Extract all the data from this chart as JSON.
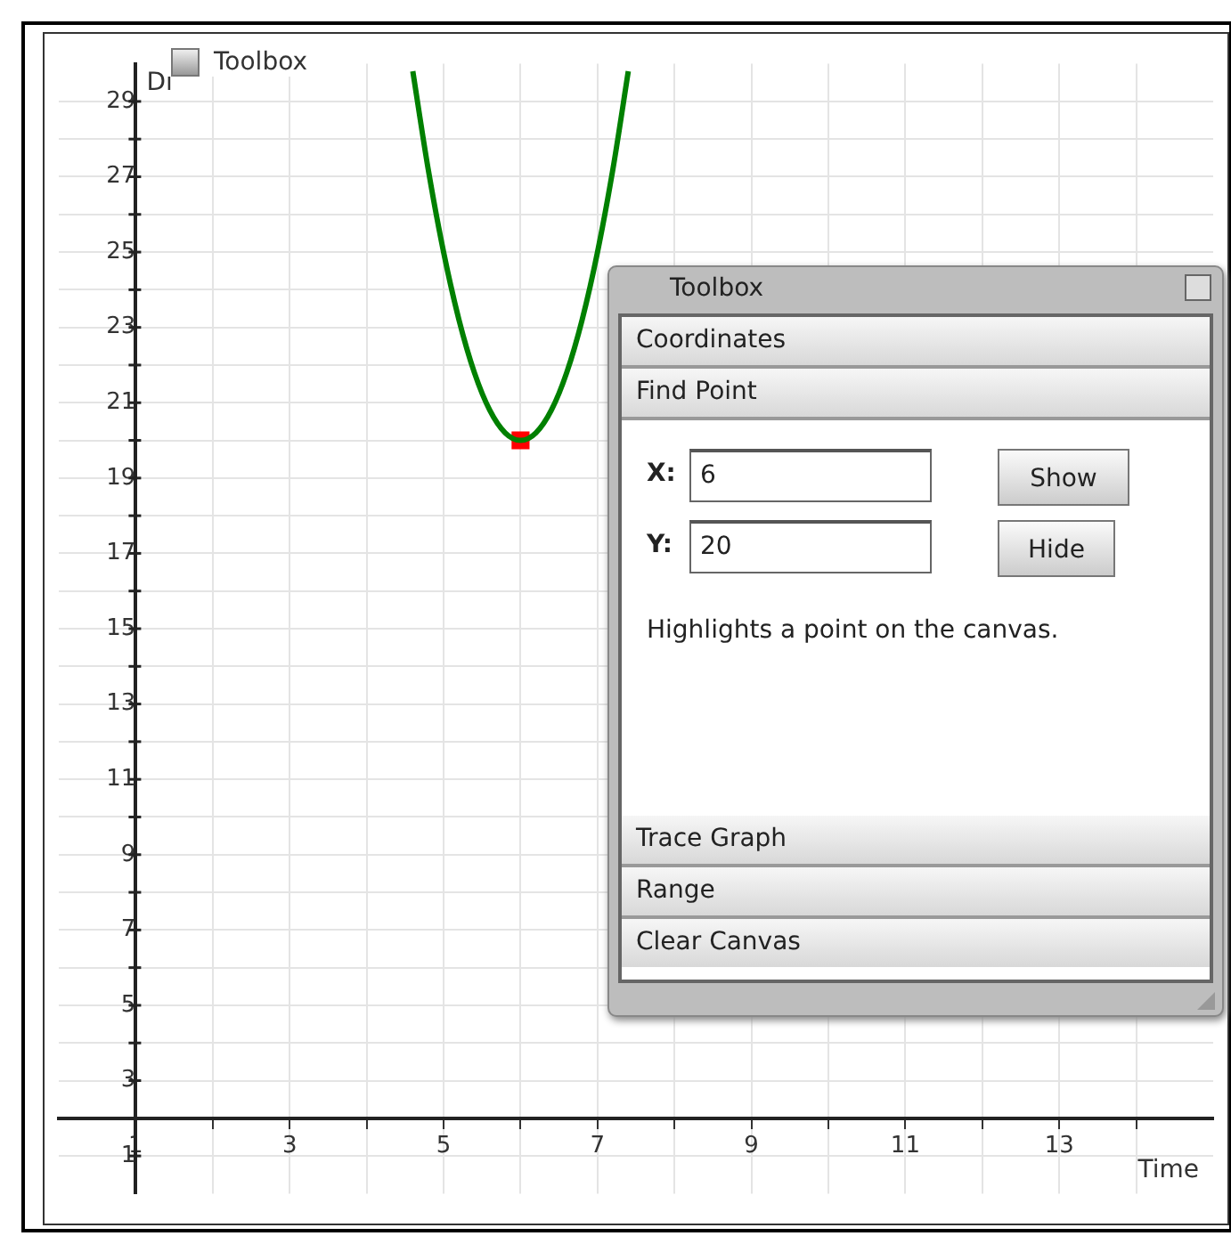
{
  "chart_data": {
    "type": "line",
    "xlabel": "Time",
    "ylabel": "Di",
    "x": [
      4.6,
      4.8,
      5.0,
      5.2,
      5.4,
      5.6,
      5.8,
      6.0,
      6.2,
      6.4,
      6.6,
      6.8,
      7.0,
      7.2,
      7.4
    ],
    "series": [
      {
        "type": "line",
        "color": "#008000",
        "marker": "none",
        "values": [
          29.8,
          27.2,
          25,
          23.2,
          21.8,
          20.8,
          20.2,
          20,
          20.2,
          20.8,
          21.8,
          23.2,
          25,
          27.2,
          29.8
        ]
      },
      {
        "type": "scatter",
        "color": "#ff0000",
        "marker": "square",
        "x": [
          6
        ],
        "values": [
          20
        ]
      }
    ],
    "xlim": [
      0,
      15
    ],
    "ylim": [
      0,
      30
    ],
    "xticks": [
      1,
      {
        "value": 2,
        "label": null
      },
      3,
      {
        "value": 4,
        "label": null
      },
      5,
      {
        "value": 6,
        "label": null
      },
      7,
      {
        "value": 8,
        "label": null
      },
      9,
      {
        "value": 10,
        "label": null
      },
      11,
      {
        "value": 12,
        "label": null
      },
      13,
      {
        "value": 14,
        "label": null
      }
    ],
    "yticks": [
      1,
      {
        "value": 2,
        "label": null
      },
      3,
      {
        "value": 4,
        "label": null
      },
      5,
      {
        "value": 6,
        "label": null
      },
      7,
      {
        "value": 8,
        "label": null
      },
      9,
      {
        "value": 10,
        "label": null
      },
      11,
      {
        "value": 12,
        "label": null
      },
      13,
      {
        "value": 14,
        "label": null
      },
      15,
      {
        "value": 16,
        "label": null
      },
      17,
      {
        "value": 18,
        "label": null
      },
      19,
      {
        "value": 20,
        "label": null
      },
      21,
      {
        "value": 22,
        "label": null
      },
      23,
      {
        "value": 24,
        "label": null
      },
      25,
      {
        "value": 26,
        "label": null
      },
      27,
      {
        "value": 28,
        "label": null
      },
      29
    ],
    "grid": true,
    "legend": false,
    "annotations": [
      "Toolbox",
      "Toolbox",
      "Coordinates",
      "Find Point",
      "X:",
      "6",
      "Y:",
      "20",
      "Show",
      "Hide",
      "Highlights a point on the canvas.",
      "Trace Graph",
      "Range",
      "Clear Canvas"
    ]
  }
}
